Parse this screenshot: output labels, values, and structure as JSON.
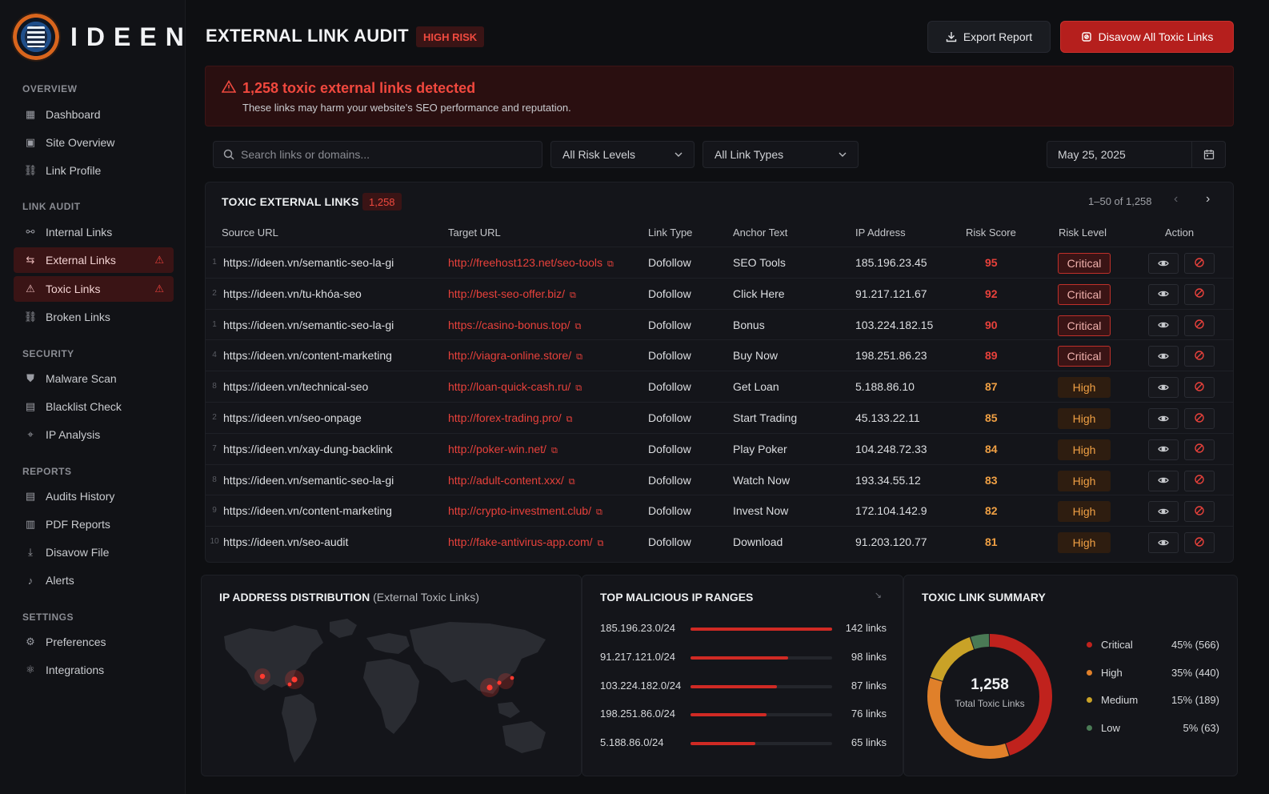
{
  "brand": {
    "name": "IDEEN"
  },
  "sidebar": {
    "sections": [
      {
        "label": "OVERVIEW",
        "items": [
          {
            "label": "Dashboard",
            "icon": "dashboard-icon"
          },
          {
            "label": "Site Overview",
            "icon": "site-overview-icon"
          },
          {
            "label": "Link Profile",
            "icon": "link-profile-icon"
          }
        ]
      },
      {
        "label": "LINK AUDIT",
        "items": [
          {
            "label": "Internal Links",
            "icon": "internal-links-icon"
          },
          {
            "label": "External Links",
            "icon": "external-links-icon",
            "active": true,
            "warning": true
          },
          {
            "label": "Toxic Links",
            "icon": "toxic-links-icon",
            "active": true,
            "warning": true
          },
          {
            "label": "Broken Links",
            "icon": "broken-links-icon"
          }
        ]
      },
      {
        "label": "SECURITY",
        "items": [
          {
            "label": "Malware Scan",
            "icon": "shield-icon"
          },
          {
            "label": "Blacklist Check",
            "icon": "blacklist-icon"
          },
          {
            "label": "IP Analysis",
            "icon": "location-pin-icon"
          }
        ]
      },
      {
        "label": "REPORTS",
        "items": [
          {
            "label": "Audits History",
            "icon": "history-icon"
          },
          {
            "label": "PDF Reports",
            "icon": "document-icon"
          },
          {
            "label": "Disavow File",
            "icon": "download-icon"
          },
          {
            "label": "Alerts",
            "icon": "bell-icon"
          }
        ]
      },
      {
        "label": "SETTINGS",
        "items": [
          {
            "label": "Preferences",
            "icon": "gear-icon"
          },
          {
            "label": "Integrations",
            "icon": "integrations-icon"
          }
        ]
      }
    ]
  },
  "header": {
    "title": "EXTERNAL LINK AUDIT",
    "risk_badge": "HIGH RISK",
    "export_label": "Export Report",
    "disavow_label": "Disavow All Toxic Links"
  },
  "alert": {
    "title": "1,258 toxic external links detected",
    "text": "These links may harm your website's SEO performance and reputation."
  },
  "filters": {
    "search_placeholder": "Search links or domains...",
    "risk_level": "All Risk Levels",
    "link_type": "All Link Types",
    "date": "May 25, 2025"
  },
  "table": {
    "title": "TOXIC EXTERNAL LINKS",
    "count": "1,258",
    "pager": "1–50 of 1,258",
    "columns": [
      "Source URL",
      "Target URL",
      "Link Type",
      "Anchor Text",
      "IP Address",
      "Risk Score",
      "Risk Level",
      "Action"
    ],
    "rows": [
      {
        "num": "1",
        "source": "https://ideen.vn/semantic-seo-la-gi",
        "target": "http://freehost123.net/seo-tools",
        "type": "Dofollow",
        "anchor": "SEO Tools",
        "ip": "185.196.23.45",
        "score": "95",
        "level": "Critical"
      },
      {
        "num": "2",
        "source": "https://ideen.vn/tu-khóa-seo",
        "target": "http://best-seo-offer.biz/",
        "type": "Dofollow",
        "anchor": "Click Here",
        "ip": "91.217.121.67",
        "score": "92",
        "level": "Critical"
      },
      {
        "num": "1",
        "source": "https://ideen.vn/semantic-seo-la-gi",
        "target": "https://casino-bonus.top/",
        "type": "Dofollow",
        "anchor": "Bonus",
        "ip": "103.224.182.15",
        "score": "90",
        "level": "Critical"
      },
      {
        "num": "4",
        "source": "https://ideen.vn/content-marketing",
        "target": "http://viagra-online.store/",
        "type": "Dofollow",
        "anchor": "Buy Now",
        "ip": "198.251.86.23",
        "score": "89",
        "level": "Critical"
      },
      {
        "num": "8",
        "source": "https://ideen.vn/technical-seo",
        "target": "http://loan-quick-cash.ru/",
        "type": "Dofollow",
        "anchor": "Get Loan",
        "ip": "5.188.86.10",
        "score": "87",
        "level": "High"
      },
      {
        "num": "2",
        "source": "https://ideen.vn/seo-onpage",
        "target": "http://forex-trading.pro/",
        "type": "Dofollow",
        "anchor": "Start Trading",
        "ip": "45.133.22.11",
        "score": "85",
        "level": "High"
      },
      {
        "num": "7",
        "source": "https://ideen.vn/xay-dung-backlink",
        "target": "http://poker-win.net/",
        "type": "Dofollow",
        "anchor": "Play Poker",
        "ip": "104.248.72.33",
        "score": "84",
        "level": "High"
      },
      {
        "num": "8",
        "source": "https://ideen.vn/semantic-seo-la-gi",
        "target": "http://adult-content.xxx/",
        "type": "Dofollow",
        "anchor": "Watch Now",
        "ip": "193.34.55.12",
        "score": "83",
        "level": "High"
      },
      {
        "num": "9",
        "source": "https://ideen.vn/content-marketing",
        "target": "http://crypto-investment.club/",
        "type": "Dofollow",
        "anchor": "Invest Now",
        "ip": "172.104.142.9",
        "score": "82",
        "level": "High"
      },
      {
        "num": "10",
        "source": "https://ideen.vn/seo-audit",
        "target": "http://fake-antivirus-app.com/",
        "type": "Dofollow",
        "anchor": "Download",
        "ip": "91.203.120.77",
        "score": "81",
        "level": "High"
      }
    ]
  },
  "map": {
    "title": "IP ADDRESS DISTRIBUTION",
    "subtitle": "(External Toxic Links)"
  },
  "ip_ranges": {
    "title": "TOP MALICIOUS IP RANGES",
    "max": 142,
    "items": [
      {
        "range": "185.196.23.0/24",
        "count": 142,
        "label": "142 links"
      },
      {
        "range": "91.217.121.0/24",
        "count": 98,
        "label": "98 links"
      },
      {
        "range": "103.224.182.0/24",
        "count": 87,
        "label": "87 links"
      },
      {
        "range": "198.251.86.0/24",
        "count": 76,
        "label": "76 links"
      },
      {
        "range": "5.188.86.0/24",
        "count": 65,
        "label": "65 links"
      }
    ]
  },
  "summary": {
    "title": "TOXIC LINK SUMMARY",
    "total": "1,258",
    "total_label": "Total Toxic Links",
    "items": [
      {
        "name": "Critical",
        "value": "45% (566)",
        "pct": 45,
        "color": "#c0221d"
      },
      {
        "name": "High",
        "value": "35% (440)",
        "pct": 35,
        "color": "#e0802a"
      },
      {
        "name": "Medium",
        "value": "15% (189)",
        "pct": 15,
        "color": "#c9a227"
      },
      {
        "name": "Low",
        "value": "5% (63)",
        "pct": 5,
        "color": "#4a7a55"
      }
    ]
  },
  "colors": {
    "accent": "#e8413b",
    "critical": "#c0221d",
    "high": "#f0a044"
  }
}
